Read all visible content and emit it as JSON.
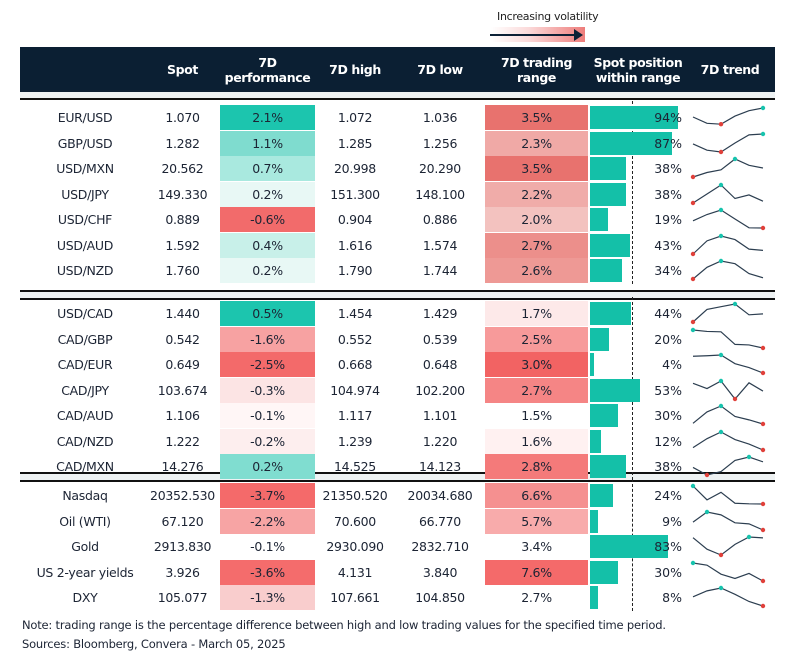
{
  "legend": {
    "label": "Increasing volatility"
  },
  "header": {
    "spot": "Spot",
    "perf": "7D performance",
    "high": "7D high",
    "low": "7D low",
    "range": "7D trading range",
    "position": "Spot position within range",
    "trend": "7D trend"
  },
  "colors": {
    "header_bg": "#0b1f33",
    "bar": "#14c0a8",
    "trend_line": "#2c3e50",
    "trend_max": "#17c3ad",
    "trend_min": "#e0403a"
  },
  "chart_data": {
    "type": "table",
    "sections": [
      [
        {
          "name": "EUR/USD",
          "spot": "1.070",
          "perf": "2.1%",
          "perf_color": "#1cc5ae",
          "high": "1.072",
          "low": "1.036",
          "range": "3.5%",
          "range_color": "#e8726e",
          "position": 94,
          "trend": [
            0.5,
            0.15,
            0.1,
            0.55,
            0.85,
            1
          ]
        },
        {
          "name": "GBP/USD",
          "spot": "1.282",
          "perf": "1.1%",
          "perf_color": "#7fdccf",
          "high": "1.285",
          "low": "1.256",
          "range": "2.3%",
          "range_color": "#f0a9a6",
          "position": 87,
          "trend": [
            0.45,
            0.1,
            0,
            0.5,
            0.95,
            1
          ]
        },
        {
          "name": "USD/MXN",
          "spot": "20.562",
          "perf": "0.7%",
          "perf_color": "#a9e9df",
          "high": "20.998",
          "low": "20.290",
          "range": "3.5%",
          "range_color": "#e8726e",
          "position": 38,
          "trend": [
            0,
            0.25,
            0.4,
            1,
            0.65,
            0.5
          ]
        },
        {
          "name": "USD/JPY",
          "spot": "149.330",
          "perf": "0.2%",
          "perf_color": "#e8f8f5",
          "high": "151.300",
          "low": "148.100",
          "range": "2.2%",
          "range_color": "#f0aca9",
          "position": 38,
          "trend": [
            0,
            0.5,
            1,
            0.25,
            0.45,
            0.1
          ]
        },
        {
          "name": "USD/CHF",
          "spot": "0.889",
          "perf": "-0.6%",
          "perf_color": "#f26b6b",
          "high": "0.904",
          "low": "0.886",
          "range": "2.0%",
          "range_color": "#f3c2bf",
          "position": 19,
          "trend": [
            0.4,
            0.75,
            1,
            0.5,
            0.01,
            0
          ]
        },
        {
          "name": "USD/AUD",
          "spot": "1.592",
          "perf": "0.4%",
          "perf_color": "#c8f0e9",
          "high": "1.616",
          "low": "1.574",
          "range": "2.7%",
          "range_color": "#ec8f8b",
          "position": 43,
          "trend": [
            0,
            0.73,
            1,
            0.8,
            0.27,
            0.2
          ]
        },
        {
          "name": "USD/NZD",
          "spot": "1.760",
          "perf": "0.2%",
          "perf_color": "#e8f8f5",
          "high": "1.790",
          "low": "1.744",
          "range": "2.6%",
          "range_color": "#ee9995",
          "position": 34,
          "trend": [
            0,
            0.65,
            1,
            0.85,
            0.3,
            0.07
          ]
        }
      ],
      [
        {
          "name": "USD/CAD",
          "spot": "1.440",
          "perf": "0.5%",
          "perf_color": "#1cc5ae",
          "high": "1.454",
          "low": "1.429",
          "range": "1.7%",
          "range_color": "#fde9e9",
          "position": 44,
          "trend": [
            0,
            0.7,
            0.85,
            1,
            0.4,
            0.45
          ]
        },
        {
          "name": "CAD/GBP",
          "spot": "0.542",
          "perf": "-1.6%",
          "perf_color": "#f7a2a2",
          "high": "0.552",
          "low": "0.539",
          "range": "2.5%",
          "range_color": "#f79a9a",
          "position": 20,
          "trend": [
            1,
            0.92,
            0.9,
            0.2,
            0.17,
            0
          ]
        },
        {
          "name": "CAD/EUR",
          "spot": "0.649",
          "perf": "-2.5%",
          "perf_color": "#f36a6a",
          "high": "0.668",
          "low": "0.648",
          "range": "3.0%",
          "range_color": "#f26363",
          "position": 4,
          "trend": [
            0.93,
            0.96,
            1,
            0.52,
            0.3,
            0
          ]
        },
        {
          "name": "CAD/JPY",
          "spot": "103.674",
          "perf": "-0.3%",
          "perf_color": "#fce4e4",
          "high": "104.974",
          "low": "102.200",
          "range": "2.7%",
          "range_color": "#f58585",
          "position": 53,
          "trend": [
            0.87,
            0.58,
            1,
            0,
            0.9,
            0.44
          ]
        },
        {
          "name": "CAD/AUD",
          "spot": "1.106",
          "perf": "-0.1%",
          "perf_color": "#fff6f6",
          "high": "1.117",
          "low": "1.101",
          "range": "1.5%",
          "range_color": "#ffffff",
          "position": 30,
          "trend": [
            0.04,
            0.67,
            1,
            0.42,
            0.23,
            0
          ]
        },
        {
          "name": "CAD/NZD",
          "spot": "1.222",
          "perf": "-0.2%",
          "perf_color": "#fdeeee",
          "high": "1.239",
          "low": "1.220",
          "range": "1.6%",
          "range_color": "#fff1f1",
          "position": 12,
          "trend": [
            0.13,
            0.63,
            1,
            0.58,
            0.33,
            0
          ]
        },
        {
          "name": "CAD/MXN",
          "spot": "14.276",
          "perf": "0.2%",
          "perf_color": "#80ddd0",
          "high": "14.525",
          "low": "14.123",
          "range": "2.8%",
          "range_color": "#f47a7a",
          "position": 38,
          "trend": [
            0.42,
            0,
            0.19,
            0.81,
            1,
            0.73
          ]
        }
      ],
      [
        {
          "name": "Nasdaq",
          "spot": "20352.530",
          "perf": "-3.7%",
          "perf_color": "#f46a6a",
          "high": "21350.520",
          "low": "20034.680",
          "range": "6.6%",
          "range_color": "#f59090",
          "position": 24,
          "trend": [
            1,
            0.23,
            0.65,
            0.04,
            0.01,
            0
          ]
        },
        {
          "name": "Oil (WTI)",
          "spot": "67.120",
          "perf": "-2.2%",
          "perf_color": "#f7a4a4",
          "high": "70.600",
          "low": "66.770",
          "range": "5.7%",
          "range_color": "#f8abab",
          "position": 9,
          "trend": [
            0.44,
            1,
            0.84,
            0.4,
            0.34,
            0
          ]
        },
        {
          "name": "Gold",
          "spot": "2913.830",
          "perf": "-0.1%",
          "perf_color": "#ffffff",
          "high": "2930.090",
          "low": "2832.710",
          "range": "3.4%",
          "range_color": "#ffffff",
          "position": 83,
          "trend": [
            0.96,
            0.32,
            0,
            0.59,
            1,
            0.95
          ]
        },
        {
          "name": "US 2-year yields",
          "spot": "3.926",
          "perf": "-3.6%",
          "perf_color": "#f46c6c",
          "high": "4.131",
          "low": "3.840",
          "range": "7.6%",
          "range_color": "#f46a6a",
          "position": 30,
          "trend": [
            1,
            0.88,
            0.38,
            0.14,
            0.42,
            0
          ]
        },
        {
          "name": "DXY",
          "spot": "105.077",
          "perf": "-1.3%",
          "perf_color": "#f9cdcd",
          "high": "107.661",
          "low": "104.850",
          "range": "2.7%",
          "range_color": "#ffffff",
          "position": 8,
          "trend": [
            0.51,
            0.84,
            1,
            0.65,
            0.25,
            0
          ]
        }
      ]
    ]
  },
  "notes": {
    "note": "Note: trading range is the percentage difference between high and low trading values for the specified time period.",
    "sources": "Sources: Bloomberg, Convera - March 05, 2025"
  }
}
